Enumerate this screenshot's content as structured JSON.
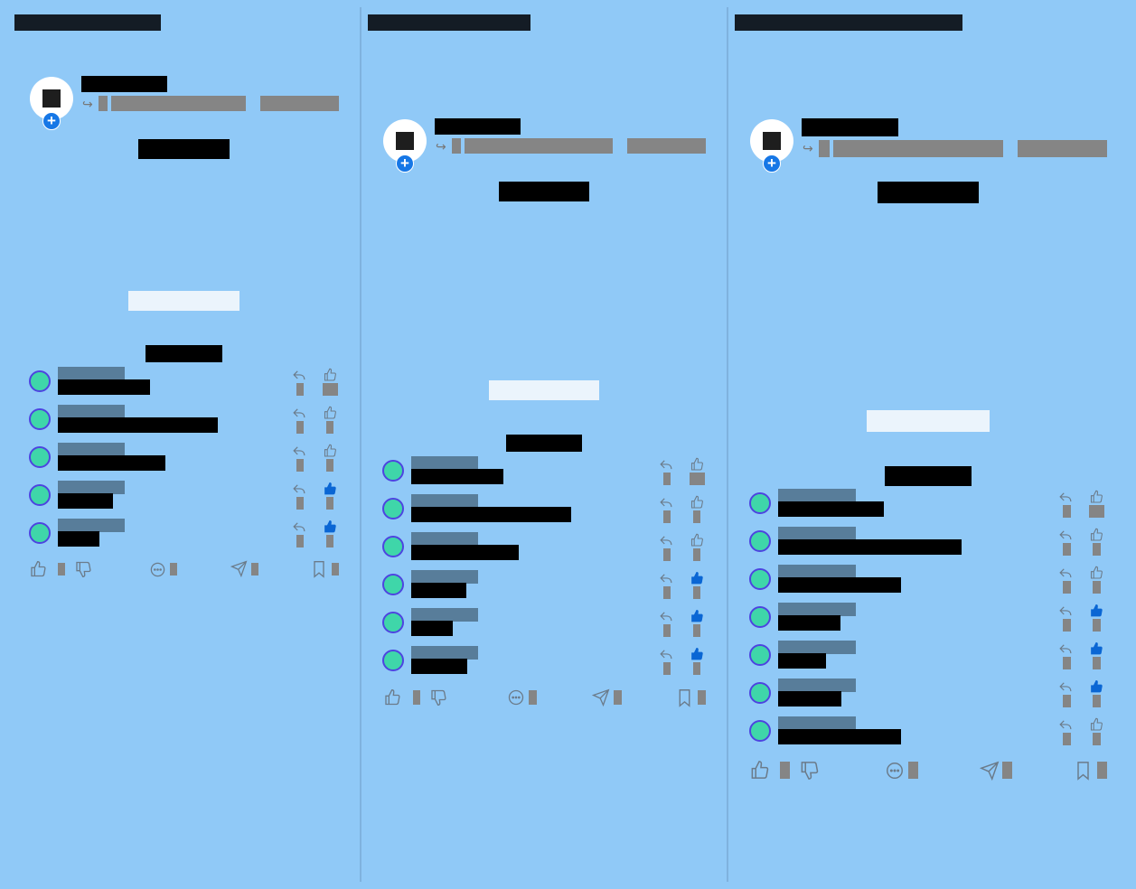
{
  "colors": {
    "background": "#90c9f7",
    "redaction_dark": "#141c25",
    "redaction_black": "#000000",
    "redaction_grey": "#858585",
    "username_bar": "#587d9a",
    "placeholder_bar": "#ebf4fc",
    "avatar_fill": "#3fd6a9",
    "avatar_ring": "#4d44e0",
    "accent_blue": "#1677e6",
    "liked_blue": "#0a66d4",
    "icon_grey": "#777777"
  },
  "columns": [
    {
      "comments": [
        {
          "liked": false,
          "icon": "reply-icon",
          "like_icon": "thumbs-up-outline-icon"
        },
        {
          "liked": false,
          "icon": "reply-icon",
          "like_icon": "thumbs-up-outline-icon"
        },
        {
          "liked": false,
          "icon": "reply-icon",
          "like_icon": "thumbs-up-outline-icon"
        },
        {
          "liked": true,
          "icon": "reply-icon",
          "like_icon": "thumbs-up-filled-icon"
        },
        {
          "liked": true,
          "icon": "reply-icon",
          "like_icon": "thumbs-up-filled-icon"
        }
      ]
    },
    {
      "comments": [
        {
          "liked": false,
          "icon": "reply-icon",
          "like_icon": "thumbs-up-outline-icon"
        },
        {
          "liked": false,
          "icon": "reply-icon",
          "like_icon": "thumbs-up-outline-icon"
        },
        {
          "liked": false,
          "icon": "reply-icon",
          "like_icon": "thumbs-up-outline-icon"
        },
        {
          "liked": true,
          "icon": "reply-icon",
          "like_icon": "thumbs-up-filled-icon"
        },
        {
          "liked": true,
          "icon": "reply-icon",
          "like_icon": "thumbs-up-filled-icon"
        },
        {
          "liked": true,
          "icon": "reply-icon",
          "like_icon": "thumbs-up-filled-icon"
        }
      ]
    },
    {
      "comments": [
        {
          "liked": false,
          "icon": "reply-icon",
          "like_icon": "thumbs-up-outline-icon"
        },
        {
          "liked": false,
          "icon": "reply-icon",
          "like_icon": "thumbs-up-outline-icon"
        },
        {
          "liked": false,
          "icon": "reply-icon",
          "like_icon": "thumbs-up-outline-icon"
        },
        {
          "liked": true,
          "icon": "reply-icon",
          "like_icon": "thumbs-up-filled-icon"
        },
        {
          "liked": true,
          "icon": "reply-icon",
          "like_icon": "thumbs-up-filled-icon"
        },
        {
          "liked": true,
          "icon": "reply-icon",
          "like_icon": "thumbs-up-filled-icon"
        },
        {
          "liked": false,
          "icon": "reply-icon",
          "like_icon": "thumbs-up-outline-icon"
        }
      ]
    }
  ],
  "action_bar_icons": [
    "thumbs-up-icon",
    "thumbs-down-icon",
    "comment-icon",
    "share-icon",
    "bookmark-icon"
  ]
}
